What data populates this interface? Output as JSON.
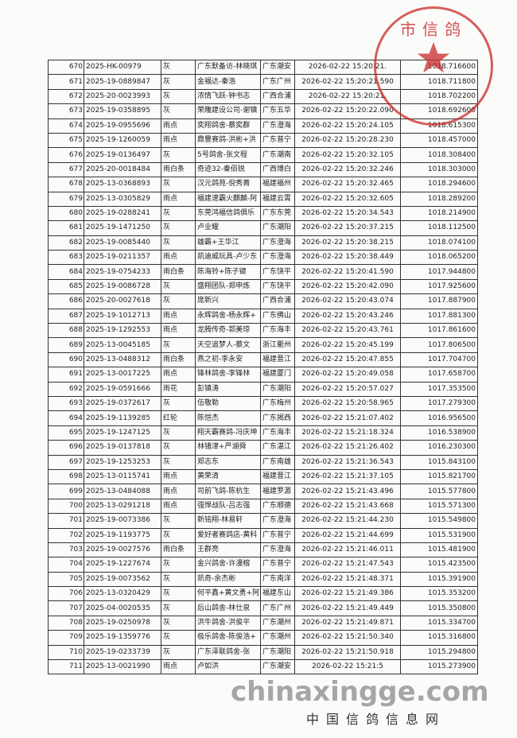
{
  "stamp": {
    "text": "市信鸽",
    "color": "#c82828"
  },
  "watermark": "chinaxingge.com",
  "site_name": "中国信鸽信息网",
  "rows": [
    [
      "670",
      "2025-HK-00979",
      "灰",
      "广东默备访-林晓琪",
      "广东潮安",
      "2026-02-22  15:20:21.",
      "1018.716600"
    ],
    [
      "671",
      "2025-19-0889847",
      "灰",
      "金福达-秦浩",
      "广东广州",
      "2026-02-22  15:20:21.590",
      "1018.711800"
    ],
    [
      "672",
      "2025-20-0023993",
      "灰",
      "浓情飞跃-钟书志",
      "广西合浦",
      "2026-02-22  15:20:21.",
      "1018.702200"
    ],
    [
      "673",
      "2025-19-0358895",
      "灰",
      "荣雕建设公司-谢镇",
      "广东五华",
      "2026-02-22  15:20:22.090",
      "1018.692600"
    ],
    [
      "674",
      "2025-19-0955696",
      "雨点",
      "奕翔鸽舍-蔡奕群",
      "广东澄海",
      "2026-02-22  15:20:24.105",
      "1018.615300"
    ],
    [
      "675",
      "2025-19-1260059",
      "雨点",
      "鼎豐赛鸽-洪彬+洪",
      "广东普宁",
      "2026-02-22  15:20:28.230",
      "1018.457000"
    ],
    [
      "676",
      "2025-19-0136497",
      "灰",
      "5号鸽舍-张文程",
      "广东潮南",
      "2026-02-22  15:20:32.105",
      "1018.308400"
    ],
    [
      "677",
      "2025-20-0018484",
      "雨白条",
      "奇迹32-秦佰锐",
      "广西博白",
      "2026-02-22  15:20:32.246",
      "1018.303000"
    ],
    [
      "678",
      "2025-13-0368893",
      "灰",
      "汉元鸽苑-倪秀菁",
      "福建福州",
      "2026-02-22  15:20:32.465",
      "1018.294600"
    ],
    [
      "679",
      "2025-13-0305829",
      "雨点",
      "福建速霸火麒麟-阿",
      "福建云霄",
      "2026-02-22  15:20:32.605",
      "1018.289200"
    ],
    [
      "680",
      "2025-19-0288241",
      "灰",
      "东莞鸿福信鸽俱乐",
      "广东东莞",
      "2026-02-22  15:20:34.543",
      "1018.214900"
    ],
    [
      "681",
      "2025-19-1471250",
      "灰",
      "卢业耀",
      "广东潮阳",
      "2026-02-22  15:20:37.215",
      "1018.112500"
    ],
    [
      "682",
      "2025-19-0085440",
      "灰",
      "雄霸+王华江",
      "广东澄海",
      "2026-02-22  15:20:38.215",
      "1018.074100"
    ],
    [
      "683",
      "2025-19-0211357",
      "雨点",
      "凯迪威玩具-卢少东",
      "广东澄海",
      "2026-02-22  15:20:38.449",
      "1018.065200"
    ],
    [
      "684",
      "2025-19-0754233",
      "雨白条",
      "陈海铃+陈子键",
      "广东饶平",
      "2026-02-22  15:20:41.590",
      "1017.944800"
    ],
    [
      "685",
      "2025-19-0086728",
      "灰",
      "盛翔团队-郑申炼",
      "广东饶平",
      "2026-02-22  15:20:42.090",
      "1017.925600"
    ],
    [
      "686",
      "2025-20-0027618",
      "灰",
      "庞新兴",
      "广西合浦",
      "2026-02-22  15:20:43.074",
      "1017.887900"
    ],
    [
      "687",
      "2025-19-1012713",
      "雨点",
      "永辉鸽舍-杨永辉+",
      "广东佛山",
      "2026-02-22  15:20:43.246",
      "1017.881300"
    ],
    [
      "688",
      "2025-19-1292553",
      "雨点",
      "龙腾传奇-郭美琼",
      "广东海丰",
      "2026-02-22  15:20:43.761",
      "1017.861600"
    ],
    [
      "689",
      "2025-13-0045185",
      "灰",
      "天空追梦人-蔡文",
      "浙江衢州",
      "2026-02-22  15:20:45.199",
      "1017.806500"
    ],
    [
      "690",
      "2025-13-0488312",
      "雨白条",
      "燕之初-李永安",
      "福建晋江",
      "2026-02-22  15:20:47.855",
      "1017.704700"
    ],
    [
      "691",
      "2025-13-0017225",
      "雨点",
      "锋林鸽舍-李锋林",
      "福建厦门",
      "2026-02-22  15:20:49.058",
      "1017.658700"
    ],
    [
      "692",
      "2025-19-0591666",
      "雨花",
      "彭镇涛",
      "广东潮阳",
      "2026-02-22  15:20:57.027",
      "1017.353500"
    ],
    [
      "693",
      "2025-19-0372617",
      "灰",
      "伍敬勒",
      "广东梅州",
      "2026-02-22  15:20:58.965",
      "1017.279300"
    ],
    [
      "694",
      "2025-19-1139285",
      "红轮",
      "陈恺杰",
      "广东揭西",
      "2026-02-22  15:21:07.402",
      "1016.956500"
    ],
    [
      "695",
      "2025-19-1247125",
      "灰",
      "翔天霸赛鸽-冯庆坤",
      "广东海丰",
      "2026-02-22  15:21:18.324",
      "1016.538900"
    ],
    [
      "696",
      "2025-19-0137818",
      "灰",
      "林锗津+严湖舜",
      "广东湛江",
      "2026-02-22  15:21:26.402",
      "1016.230300"
    ],
    [
      "697",
      "2025-19-1253253",
      "灰",
      "郑志东",
      "广东南雄",
      "2026-02-22  15:21:36.543",
      "1015.843100"
    ],
    [
      "698",
      "2025-13-0115741",
      "雨点",
      "黄荣清",
      "福建晋江",
      "2026-02-22  15:21:37.105",
      "1015.821700"
    ],
    [
      "699",
      "2025-13-0484088",
      "雨点",
      "司前飞鸽-陈杭生",
      "福建罗源",
      "2026-02-22  15:21:43.496",
      "1015.577800"
    ],
    [
      "700",
      "2025-13-0291218",
      "雨点",
      "强悍战队-吕志强",
      "广东顺德",
      "2026-02-22  15:21:43.668",
      "1015.571300"
    ],
    [
      "701",
      "2025-19-0073386",
      "灰",
      "新铭翔-林易轩",
      "广东澄海",
      "2026-02-22  15:21:44.230",
      "1015.549800"
    ],
    [
      "702",
      "2025-19-1193775",
      "灰",
      "爱好者赛鸽店-黄科",
      "广东普宁",
      "2026-02-22  15:21:44.699",
      "1015.531900"
    ],
    [
      "703",
      "2025-19-0027576",
      "雨白条",
      "王群亮",
      "广东澄海",
      "2026-02-22  15:21:46.011",
      "1015.481900"
    ],
    [
      "704",
      "2025-19-1227674",
      "灰",
      "金兴鸽舍-许漫榕",
      "广东普宁",
      "2026-02-22  15:21:47.543",
      "1015.423500"
    ],
    [
      "705",
      "2025-19-0073562",
      "灰",
      "凯奇-余杰彬",
      "广东南洋",
      "2026-02-22  15:21:48.371",
      "1015.391900"
    ],
    [
      "706",
      "2025-13-0320429",
      "灰",
      "何平鑫+黄文勇+阿",
      "福建东山",
      "2026-02-22  15:21:49.386",
      "1015.353200"
    ],
    [
      "707",
      "2025-04-0020535",
      "灰",
      "后山鸽舍-林仕泉",
      "广东广州",
      "2026-02-22  15:21:49.449",
      "1015.350800"
    ],
    [
      "708",
      "2025-19-0250978",
      "灰",
      "洪牛鸽舍-洪俊平",
      "广东潮州",
      "2026-02-22  15:21:49.871",
      "1015.334700"
    ],
    [
      "709",
      "2025-19-1359776",
      "灰",
      "极乐鸽舍-陈俊浩+",
      "广东潮州",
      "2026-02-22  15:21:50.340",
      "1015.316800"
    ],
    [
      "710",
      "2025-19-0233739",
      "灰",
      "广东泽联鸽舍-张",
      "广东潮阳",
      "2026-02-22  15:21:50.918",
      "1015.294800"
    ],
    [
      "711",
      "2025-13-0021990",
      "雨点",
      "卢如洪",
      "广东潮安",
      "2026-02-22  15:21:5",
      "1015.273900"
    ]
  ]
}
